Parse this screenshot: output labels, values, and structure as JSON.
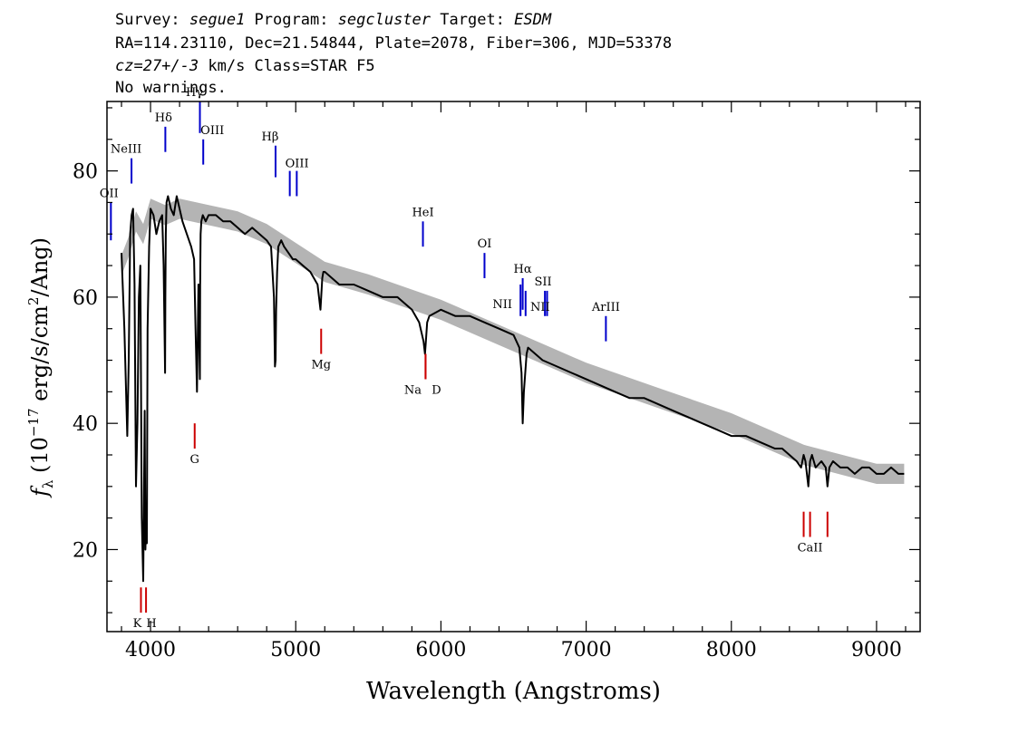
{
  "header": {
    "line1": {
      "survey_label": "Survey: ",
      "survey": "segue1",
      "program_label": " Program: ",
      "program": "segcluster",
      "target_label": " Target: ",
      "target": "ESDM"
    },
    "line2": "RA=114.23110, Dec=21.54844, Plate=2078, Fiber=306, MJD=53378",
    "line3": {
      "cz": "cz=27+/-3",
      "rest": " km/s Class=STAR F5"
    },
    "line4": "No warnings."
  },
  "chart_data": {
    "type": "line",
    "xlabel": "Wavelength (Angstroms)",
    "ylabel_parts": [
      "f",
      "λ",
      " (10",
      "−17",
      " erg/s/cm",
      "2",
      "/Ang)"
    ],
    "xlim": [
      3700,
      9300
    ],
    "ylim": [
      7,
      91
    ],
    "x_ticks": [
      4000,
      5000,
      6000,
      7000,
      8000,
      9000
    ],
    "y_ticks": [
      20,
      40,
      60,
      80
    ],
    "x_minor_step": 200,
    "y_minor_step": 5,
    "series": [
      {
        "color": "#000000",
        "x": [
          3800,
          3820,
          3840,
          3850,
          3860,
          3870,
          3880,
          3890,
          3900,
          3910,
          3920,
          3930,
          3940,
          3950,
          3960,
          3965,
          3970,
          3975,
          3980,
          3990,
          4000,
          4020,
          4040,
          4060,
          4080,
          4090,
          4100,
          4102,
          4105,
          4110,
          4120,
          4140,
          4160,
          4180,
          4200,
          4220,
          4250,
          4280,
          4300,
          4310,
          4320,
          4330,
          4340,
          4342,
          4345,
          4350,
          4360,
          4380,
          4400,
          4450,
          4500,
          4550,
          4600,
          4650,
          4700,
          4750,
          4800,
          4830,
          4850,
          4857,
          4861,
          4865,
          4872,
          4880,
          4900,
          4920,
          4950,
          4980,
          5000,
          5050,
          5100,
          5150,
          5170,
          5175,
          5183,
          5190,
          5200,
          5250,
          5300,
          5400,
          5500,
          5600,
          5700,
          5800,
          5850,
          5880,
          5890,
          5896,
          5905,
          5920,
          6000,
          6100,
          6200,
          6300,
          6400,
          6500,
          6540,
          6555,
          6563,
          6571,
          6590,
          6600,
          6700,
          6800,
          6900,
          7000,
          7100,
          7200,
          7300,
          7400,
          7500,
          7600,
          7700,
          7800,
          7900,
          8000,
          8100,
          8200,
          8300,
          8350,
          8400,
          8450,
          8480,
          8498,
          8510,
          8530,
          8542,
          8555,
          8580,
          8620,
          8650,
          8662,
          8675,
          8700,
          8750,
          8800,
          8850,
          8900,
          8950,
          9000,
          9050,
          9100,
          9150,
          9190
        ],
        "y": [
          67,
          55,
          38,
          50,
          70,
          73,
          74,
          62,
          30,
          40,
          60,
          65,
          25,
          15,
          42,
          20,
          24,
          21,
          55,
          68,
          74,
          73,
          70,
          72,
          73,
          65,
          48,
          60,
          70,
          75,
          76,
          74,
          73,
          76,
          74,
          72,
          70,
          68,
          66,
          55,
          45,
          62,
          47,
          62,
          70,
          72,
          73,
          72,
          73,
          73,
          72,
          72,
          71,
          70,
          71,
          70,
          69,
          68,
          60,
          49,
          50,
          58,
          64,
          68,
          69,
          68,
          67,
          66,
          66,
          65,
          64,
          62,
          58,
          60,
          63,
          64,
          64,
          63,
          62,
          62,
          61,
          60,
          60,
          58,
          56,
          53,
          51,
          53,
          56,
          57,
          58,
          57,
          57,
          56,
          55,
          54,
          52,
          48,
          40,
          45,
          51,
          52,
          50,
          49,
          48,
          47,
          46,
          45,
          44,
          44,
          43,
          42,
          41,
          40,
          39,
          38,
          38,
          37,
          36,
          36,
          35,
          34,
          33,
          35,
          34,
          30,
          34,
          35,
          33,
          34,
          33,
          30,
          33,
          34,
          33,
          33,
          32,
          33,
          33,
          32,
          32,
          33,
          32,
          32
        ]
      },
      {
        "name": "",
        "x": [
          3800,
          3850,
          3900,
          3950,
          4000,
          4100,
          4200,
          4400,
          4600,
          4800,
          5000,
          5200,
          5500,
          6000,
          6500,
          7000,
          7500,
          8000,
          8500,
          9000,
          9190
        ],
        "y": [
          65,
          68,
          72,
          70,
          74,
          73,
          74,
          73,
          72,
          70,
          67,
          64,
          62,
          58,
          53,
          48,
          44,
          40,
          35,
          32,
          32
        ],
        "color": "#b4b4b4",
        "band": 1.6
      }
    ],
    "emission_lines": [
      {
        "label": "OII",
        "lam": 3727,
        "color": "#0000cc",
        "y1": 69,
        "y2": 75
      },
      {
        "label": "NeIII",
        "lam": 3869,
        "color": "#0000cc",
        "y1": 78,
        "y2": 82
      },
      {
        "label": "Hδ",
        "lam": 4102,
        "color": "#0000cc",
        "y1": 83,
        "y2": 87
      },
      {
        "label": "Hγ",
        "lam": 4340,
        "color": "#0000cc",
        "y1": 86,
        "y2": 91
      },
      {
        "label": "OIII",
        "lam": 4363,
        "color": "#0000cc",
        "y1": 81,
        "y2": 85
      },
      {
        "label": "Hβ",
        "lam": 4861,
        "color": "#0000cc",
        "y1": 79,
        "y2": 84
      },
      {
        "label": "OIII",
        "lam": 4959,
        "color": "#0000cc",
        "y1": 76,
        "y2": 80
      },
      {
        "label": "",
        "lam": 5007,
        "color": "#0000cc",
        "y1": 76,
        "y2": 80
      },
      {
        "label": "HeI",
        "lam": 5876,
        "color": "#0000cc",
        "y1": 68,
        "y2": 72
      },
      {
        "label": "OI",
        "lam": 6300,
        "color": "#0000cc",
        "y1": 63,
        "y2": 67
      },
      {
        "label": "NII",
        "lam": 6548,
        "color": "#0000cc",
        "y1": 57,
        "y2": 62
      },
      {
        "label": "Hα",
        "lam": 6563,
        "color": "#0000cc",
        "y1": 58,
        "y2": 63
      },
      {
        "label": "NII",
        "lam": 6583,
        "color": "#0000cc",
        "y1": 57,
        "y2": 61
      },
      {
        "label": "SII",
        "lam": 6716,
        "color": "#0000cc",
        "y1": 57,
        "y2": 61
      },
      {
        "label": "",
        "lam": 6731,
        "color": "#0000cc",
        "y1": 57,
        "y2": 61
      },
      {
        "label": "ArIII",
        "lam": 7136,
        "color": "#0000cc",
        "y1": 53,
        "y2": 57
      }
    ],
    "absorption_lines": [
      {
        "label": "K",
        "lam": 3934,
        "color": "#cc0000",
        "y1": 10,
        "y2": 14
      },
      {
        "label": "H",
        "lam": 3969,
        "color": "#cc0000",
        "y1": 10,
        "y2": 14
      },
      {
        "label": "G",
        "lam": 4304,
        "color": "#cc0000",
        "y1": 36,
        "y2": 40
      },
      {
        "label": "Mg",
        "lam": 5175,
        "color": "#cc0000",
        "y1": 51,
        "y2": 55
      },
      {
        "label": "Na",
        "lam": 5894,
        "color": "#cc0000",
        "y1": 47,
        "y2": 51
      },
      {
        "label": "D",
        "lam": 5894,
        "color": "#cc0000",
        "y1": 47,
        "y2": 51
      },
      {
        "label": "CaII",
        "lam": 8498,
        "color": "#cc0000",
        "y1": 22,
        "y2": 26
      },
      {
        "label": "",
        "lam": 8542,
        "color": "#cc0000",
        "y1": 22,
        "y2": 26
      },
      {
        "label": "",
        "lam": 8662,
        "color": "#cc0000",
        "y1": 22,
        "y2": 26
      }
    ],
    "grid": false,
    "legend": "none"
  }
}
